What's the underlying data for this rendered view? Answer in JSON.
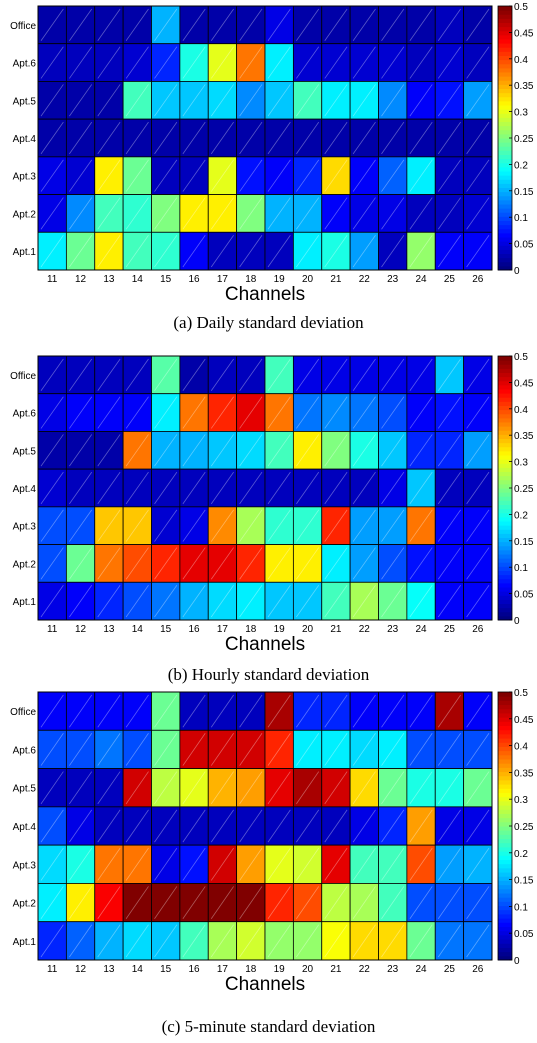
{
  "chart_data": [
    {
      "type": "heatmap",
      "caption": "(a) Daily standard deviation",
      "xlabel": "Channels",
      "ylabel": "",
      "x": [
        "11",
        "12",
        "13",
        "14",
        "15",
        "16",
        "17",
        "18",
        "19",
        "20",
        "21",
        "22",
        "23",
        "24",
        "25",
        "26"
      ],
      "y": [
        "Office",
        "Apt.6",
        "Apt.5",
        "Apt.4",
        "Apt.3",
        "Apt.2",
        "Apt.1"
      ],
      "values": [
        [
          0.02,
          0.02,
          0.02,
          0.02,
          0.15,
          0.02,
          0.02,
          0.02,
          0.05,
          0.02,
          0.02,
          0.02,
          0.02,
          0.02,
          0.03,
          0.02
        ],
        [
          0.03,
          0.03,
          0.03,
          0.04,
          0.08,
          0.2,
          0.3,
          0.38,
          0.18,
          0.04,
          0.04,
          0.04,
          0.04,
          0.03,
          0.04,
          0.03
        ],
        [
          0.02,
          0.02,
          0.02,
          0.22,
          0.16,
          0.16,
          0.17,
          0.13,
          0.16,
          0.22,
          0.18,
          0.18,
          0.13,
          0.06,
          0.07,
          0.14
        ],
        [
          0.02,
          0.02,
          0.02,
          0.02,
          0.02,
          0.02,
          0.02,
          0.02,
          0.02,
          0.02,
          0.02,
          0.02,
          0.02,
          0.02,
          0.02,
          0.02
        ],
        [
          0.05,
          0.04,
          0.32,
          0.24,
          0.03,
          0.03,
          0.3,
          0.07,
          0.06,
          0.08,
          0.33,
          0.06,
          0.11,
          0.18,
          0.03,
          0.03
        ],
        [
          0.05,
          0.13,
          0.22,
          0.21,
          0.25,
          0.32,
          0.32,
          0.25,
          0.15,
          0.15,
          0.06,
          0.05,
          0.05,
          0.03,
          0.03,
          0.04
        ],
        [
          0.18,
          0.24,
          0.32,
          0.22,
          0.21,
          0.06,
          0.03,
          0.03,
          0.03,
          0.18,
          0.2,
          0.14,
          0.03,
          0.26,
          0.06,
          0.06
        ]
      ],
      "colorbar": {
        "min": 0,
        "max": 0.5,
        "ticks": [
          "0",
          "0.05",
          "0.1",
          "0.15",
          "0.2",
          "0.25",
          "0.3",
          "0.35",
          "0.4",
          "0.45",
          "0.5"
        ]
      }
    },
    {
      "type": "heatmap",
      "caption": "(b) Hourly standard deviation",
      "xlabel": "Channels",
      "ylabel": "",
      "x": [
        "11",
        "12",
        "13",
        "14",
        "15",
        "16",
        "17",
        "18",
        "19",
        "20",
        "21",
        "22",
        "23",
        "24",
        "25",
        "26"
      ],
      "y": [
        "Office",
        "Apt.6",
        "Apt.5",
        "Apt.4",
        "Apt.3",
        "Apt.2",
        "Apt.1"
      ],
      "values": [
        [
          0.03,
          0.03,
          0.03,
          0.03,
          0.23,
          0.02,
          0.03,
          0.03,
          0.22,
          0.05,
          0.05,
          0.05,
          0.05,
          0.05,
          0.16,
          0.05
        ],
        [
          0.05,
          0.06,
          0.06,
          0.06,
          0.18,
          0.38,
          0.42,
          0.45,
          0.38,
          0.12,
          0.13,
          0.12,
          0.1,
          0.06,
          0.07,
          0.06
        ],
        [
          0.02,
          0.02,
          0.02,
          0.38,
          0.15,
          0.15,
          0.16,
          0.17,
          0.22,
          0.32,
          0.25,
          0.2,
          0.16,
          0.08,
          0.08,
          0.14
        ],
        [
          0.04,
          0.03,
          0.03,
          0.03,
          0.03,
          0.03,
          0.03,
          0.03,
          0.03,
          0.03,
          0.03,
          0.03,
          0.05,
          0.16,
          0.03,
          0.03
        ],
        [
          0.1,
          0.1,
          0.34,
          0.34,
          0.04,
          0.05,
          0.37,
          0.27,
          0.21,
          0.21,
          0.42,
          0.14,
          0.14,
          0.38,
          0.06,
          0.06
        ],
        [
          0.1,
          0.24,
          0.38,
          0.4,
          0.42,
          0.45,
          0.45,
          0.42,
          0.32,
          0.32,
          0.18,
          0.14,
          0.1,
          0.07,
          0.06,
          0.06
        ],
        [
          0.05,
          0.06,
          0.08,
          0.1,
          0.12,
          0.15,
          0.17,
          0.18,
          0.16,
          0.16,
          0.22,
          0.27,
          0.24,
          0.19,
          0.06,
          0.06
        ]
      ],
      "colorbar": {
        "min": 0,
        "max": 0.5,
        "ticks": [
          "0",
          "0.05",
          "0.1",
          "0.15",
          "0.2",
          "0.25",
          "0.3",
          "0.35",
          "0.4",
          "0.45",
          "0.5"
        ]
      }
    },
    {
      "type": "heatmap",
      "caption": "(c) 5-minute standard deviation",
      "xlabel": "Channels",
      "ylabel": "",
      "x": [
        "11",
        "12",
        "13",
        "14",
        "15",
        "16",
        "17",
        "18",
        "19",
        "20",
        "21",
        "22",
        "23",
        "24",
        "25",
        "26"
      ],
      "y": [
        "Office",
        "Apt.6",
        "Apt.5",
        "Apt.4",
        "Apt.3",
        "Apt.2",
        "Apt.1"
      ],
      "values": [
        [
          0.06,
          0.06,
          0.06,
          0.06,
          0.24,
          0.03,
          0.03,
          0.03,
          0.48,
          0.08,
          0.08,
          0.06,
          0.06,
          0.06,
          0.48,
          0.06
        ],
        [
          0.1,
          0.1,
          0.12,
          0.1,
          0.24,
          0.46,
          0.46,
          0.46,
          0.42,
          0.18,
          0.18,
          0.17,
          0.18,
          0.1,
          0.1,
          0.1
        ],
        [
          0.03,
          0.03,
          0.03,
          0.46,
          0.28,
          0.3,
          0.35,
          0.36,
          0.45,
          0.48,
          0.46,
          0.33,
          0.24,
          0.2,
          0.2,
          0.24
        ],
        [
          0.1,
          0.05,
          0.03,
          0.03,
          0.03,
          0.03,
          0.03,
          0.03,
          0.03,
          0.03,
          0.03,
          0.05,
          0.08,
          0.36,
          0.05,
          0.05
        ],
        [
          0.17,
          0.2,
          0.38,
          0.38,
          0.05,
          0.07,
          0.46,
          0.36,
          0.3,
          0.29,
          0.45,
          0.22,
          0.22,
          0.4,
          0.14,
          0.15
        ],
        [
          0.18,
          0.32,
          0.44,
          0.5,
          0.5,
          0.5,
          0.5,
          0.5,
          0.42,
          0.4,
          0.28,
          0.27,
          0.22,
          0.1,
          0.1,
          0.1
        ],
        [
          0.08,
          0.11,
          0.15,
          0.17,
          0.16,
          0.22,
          0.27,
          0.29,
          0.26,
          0.26,
          0.31,
          0.33,
          0.33,
          0.24,
          0.12,
          0.12
        ]
      ],
      "colorbar": {
        "min": 0,
        "max": 0.5,
        "ticks": [
          "0",
          "0.05",
          "0.1",
          "0.15",
          "0.2",
          "0.25",
          "0.3",
          "0.35",
          "0.4",
          "0.45",
          "0.5"
        ]
      }
    }
  ]
}
